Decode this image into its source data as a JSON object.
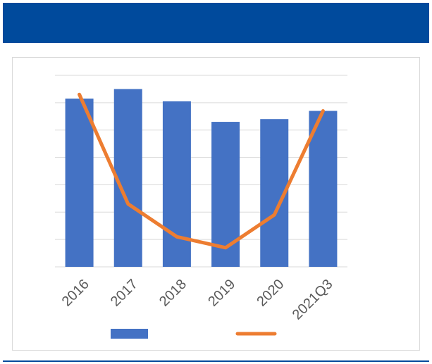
{
  "colors": {
    "header": "#004a9c",
    "bar": "#4472c4",
    "line": "#ed7d31",
    "grid": "#d9d9d9",
    "axis_text": "#595959"
  },
  "chart_data": {
    "type": "bar",
    "categories": [
      "2016",
      "2017",
      "2018",
      "2019",
      "2020",
      "2021Q3"
    ],
    "series": [
      {
        "type": "bar",
        "values": [
          6.15,
          6.5,
          6.05,
          5.3,
          5.4,
          5.7
        ]
      },
      {
        "type": "line",
        "values": [
          6.3,
          2.3,
          1.1,
          0.7,
          1.9,
          5.7
        ]
      }
    ],
    "ylim": [
      0,
      7
    ],
    "grid": true,
    "legend": "bottom",
    "title": "",
    "xlabel": "",
    "ylabel": ""
  }
}
